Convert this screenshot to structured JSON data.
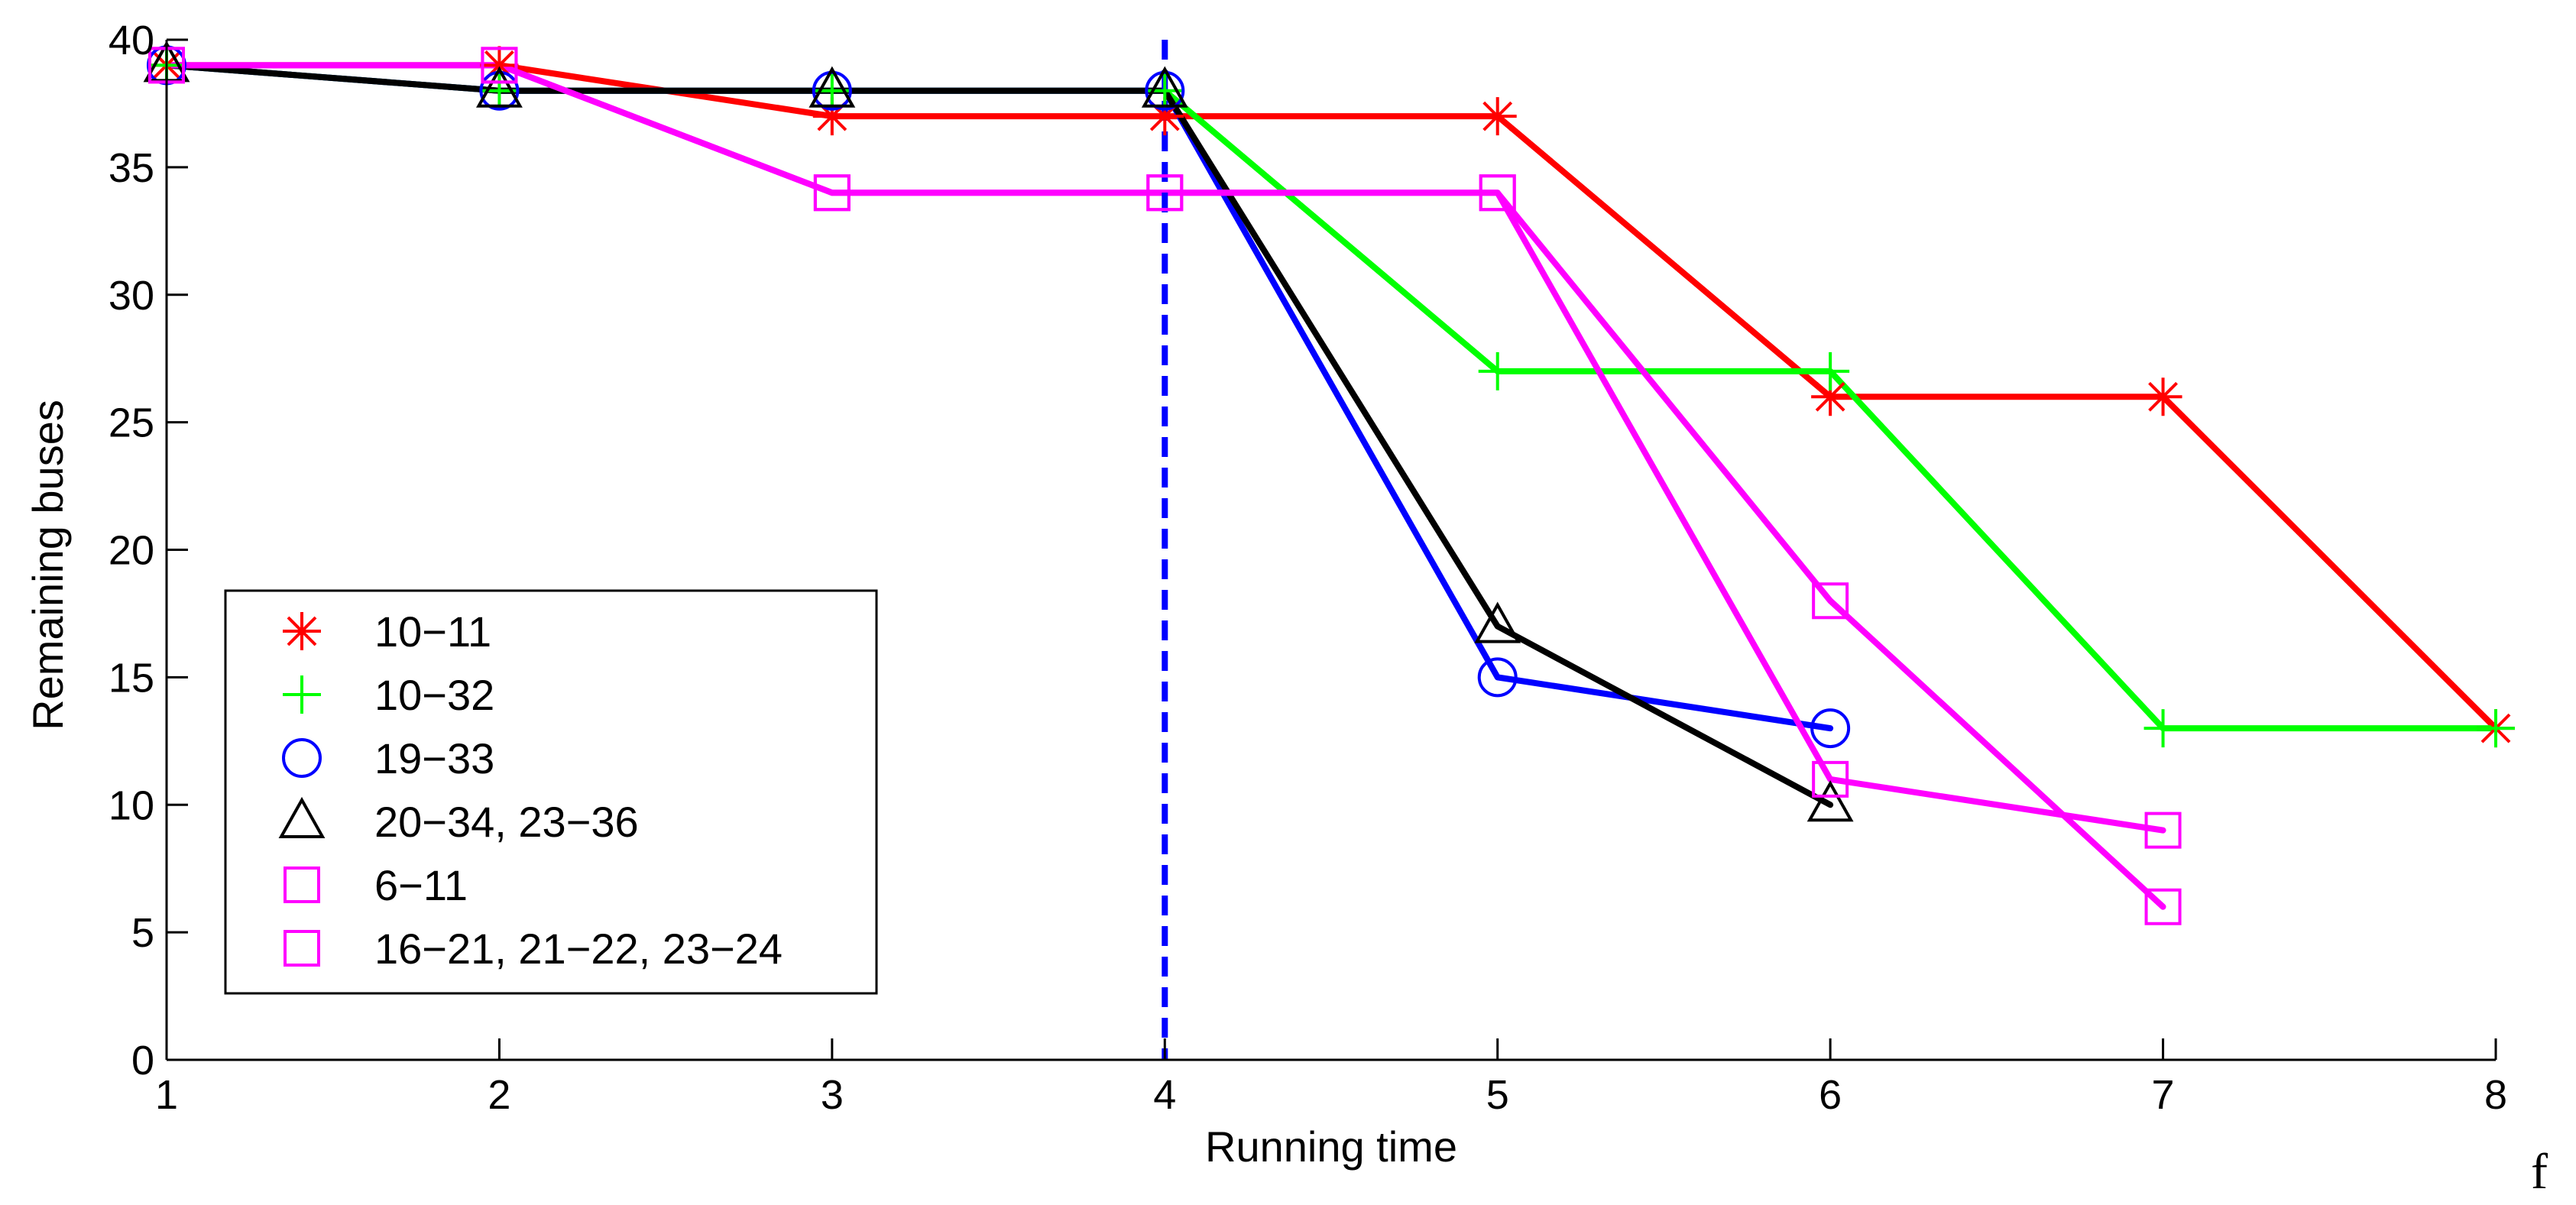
{
  "chart_data": {
    "type": "line",
    "title": "",
    "xlabel": "Running time",
    "ylabel": "Remaining buses",
    "xlim": [
      1,
      8
    ],
    "ylim": [
      0,
      40
    ],
    "xticks": [
      "1",
      "2",
      "3",
      "4",
      "5",
      "6",
      "7",
      "8"
    ],
    "yticks": [
      "0",
      "5",
      "10",
      "15",
      "20",
      "25",
      "30",
      "35",
      "40"
    ],
    "grid": false,
    "legend_position": "bottom-left",
    "vline": {
      "x": 4,
      "color": "#0000ff",
      "style": "dashed"
    },
    "series": [
      {
        "name": "10−11",
        "color": "#ff0000",
        "marker": "asterisk",
        "x": [
          1,
          2,
          3,
          4,
          5,
          6,
          7,
          8
        ],
        "y": [
          39,
          39,
          37,
          37,
          37,
          26,
          26,
          13
        ]
      },
      {
        "name": "10−32",
        "color": "#00ff00",
        "marker": "plus",
        "x": [
          1,
          2,
          3,
          4,
          5,
          6,
          7,
          8
        ],
        "y": [
          39,
          38,
          38,
          38,
          27,
          27,
          13,
          13
        ]
      },
      {
        "name": "19−33",
        "color": "#0000ff",
        "marker": "circle",
        "x": [
          1,
          2,
          3,
          4,
          5,
          6
        ],
        "y": [
          39,
          38,
          38,
          38,
          15,
          13
        ]
      },
      {
        "name": "20−34, 23−36",
        "color": "#000000",
        "marker": "triangle",
        "x": [
          1,
          2,
          3,
          4,
          5,
          6
        ],
        "y": [
          39,
          38,
          38,
          38,
          17,
          10
        ]
      },
      {
        "name": "6−11",
        "color": "#ff00ff",
        "marker": "square",
        "x": [
          1,
          2,
          3,
          4,
          5,
          6,
          7
        ],
        "y": [
          39,
          39,
          34,
          34,
          34,
          18,
          6
        ]
      },
      {
        "name": "16−21, 21−22, 23−24",
        "color": "#ff00ff",
        "marker": "square",
        "x": [
          1,
          2,
          3,
          4,
          5,
          6,
          7
        ],
        "y": [
          39,
          39,
          34,
          34,
          34,
          11,
          9
        ]
      }
    ]
  },
  "corner_text": "f"
}
